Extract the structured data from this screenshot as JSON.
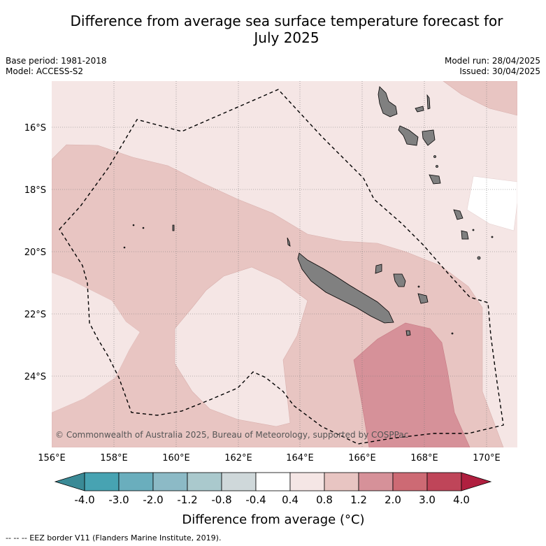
{
  "title": "Difference from average sea surface temperature forecast for July 2025",
  "title_line1": "Difference from average sea surface temperature forecast for",
  "title_line2": "July 2025",
  "meta": {
    "base_period": "Base period: 1981-2018",
    "model": "Model: ACCESS-S2",
    "model_run": "Model run: 28/04/2025",
    "issued": "Issued: 30/04/2025"
  },
  "copyright": "© Commonwealth of Australia 2025, Bureau of Meteorology, supported by COSPPac",
  "axes": {
    "lon_labels": [
      "156°E",
      "158°E",
      "160°E",
      "162°E",
      "164°E",
      "166°E",
      "168°E",
      "170°E"
    ],
    "lat_labels": [
      "16°S",
      "18°S",
      "20°S",
      "22°S",
      "24°S"
    ],
    "lon_range": [
      156,
      171
    ],
    "lat_range": [
      -26.2,
      -14.8
    ]
  },
  "colorbar": {
    "title": "Difference from average (°C)",
    "title_text": "Difference from average (",
    "title_unit": "°C)",
    "tick_labels": [
      "-4.0",
      "-3.0",
      "-2.0",
      "-1.2",
      "-0.8",
      "-0.4",
      "0.4",
      "0.8",
      "1.2",
      "2.0",
      "3.0",
      "4.0"
    ],
    "colors": {
      "under": "#3a8a96",
      "bins": [
        "#47a3b2",
        "#6aaebd",
        "#8cbac6",
        "#aac9cd",
        "#cfd8da",
        "#ffffff",
        "#f5e6e5",
        "#e8c5c2",
        "#d69199",
        "#cd6a74",
        "#bf4559"
      ],
      "over": "#b01f3f"
    }
  },
  "legend": {
    "eez_line": "-- -- -- EEZ border V11 (Flanders Marine Institute, 2019)."
  },
  "map_colors": {
    "level_0_4_0_8": "#f5e6e5",
    "level_0_8_1_2": "#e8c5c2",
    "level_1_2_2_0": "#d69199",
    "neutral": "#ffffff",
    "land": "#808080"
  }
}
